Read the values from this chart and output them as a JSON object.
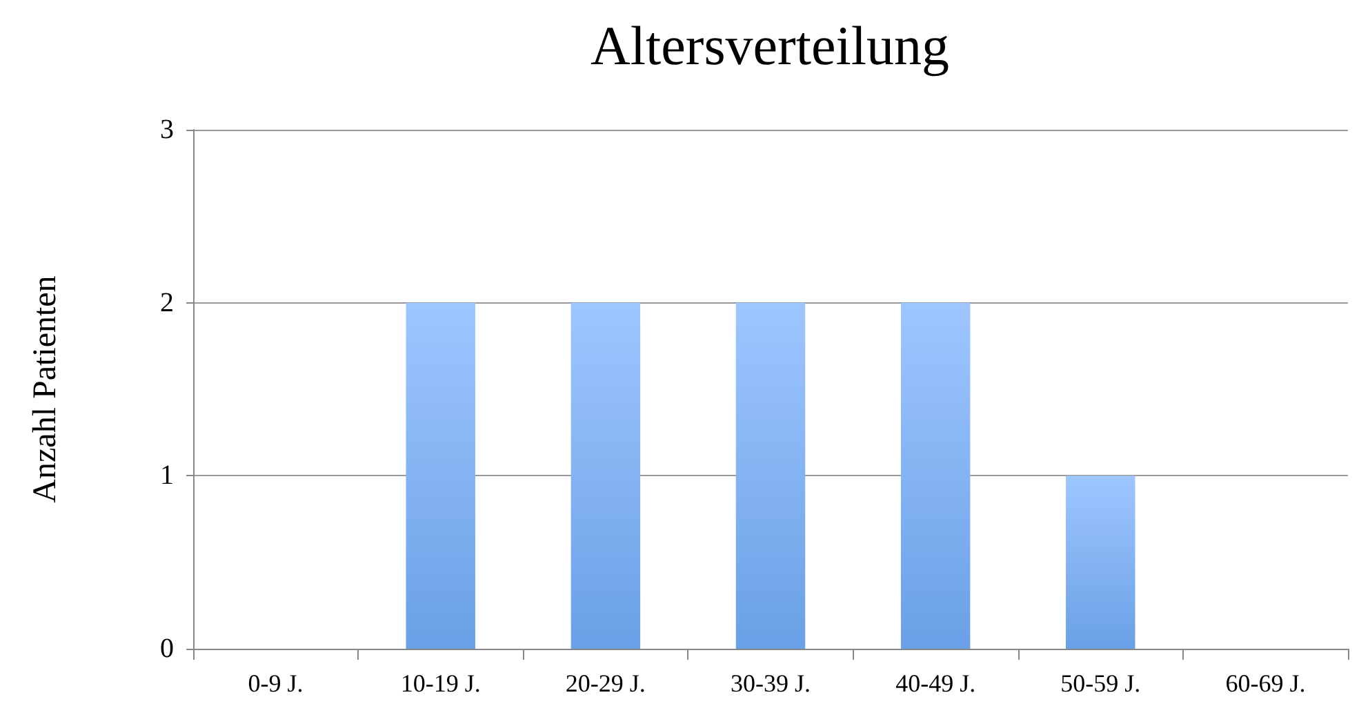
{
  "chart_data": {
    "type": "bar",
    "title": "Altersverteilung",
    "ylabel": "Anzahl Patienten",
    "categories": [
      "0-9 J.",
      "10-19 J.",
      "20-29 J.",
      "30-39 J.",
      "40-49 J.",
      "50-59 J.",
      "60-69 J."
    ],
    "values": [
      0,
      2,
      2,
      2,
      2,
      1,
      0
    ],
    "color": "#6aa0e6",
    "ylim": [
      0,
      3
    ],
    "yticks": [
      0,
      1,
      2,
      3
    ],
    "grid": "y"
  }
}
